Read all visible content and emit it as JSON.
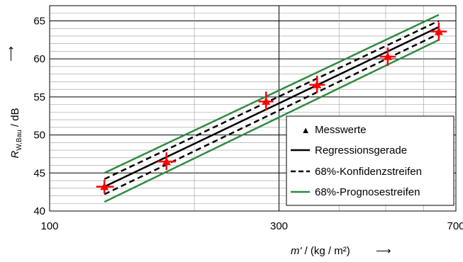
{
  "chart_data": {
    "type": "scatter",
    "x_scale": "log",
    "x_range": [
      100,
      700
    ],
    "y_range": [
      40,
      67
    ],
    "x_ticks": [
      100,
      300,
      700
    ],
    "x_tick_labels": [
      "100",
      "300",
      "700"
    ],
    "y_ticks": [
      40,
      45,
      50,
      55,
      60,
      65
    ],
    "y_tick_labels": [
      "40",
      "45",
      "50",
      "55",
      "60",
      "65"
    ],
    "grid": true,
    "ylabel_main": "R",
    "ylabel_sub": "W,Bau",
    "ylabel_rest": " / dB",
    "ylabel_arrow": "⟶",
    "xlabel_main": "m'",
    "xlabel_rest": " / (kg / m²)",
    "xlabel_arrow": "⟶",
    "legend_position": "bottom-right",
    "legend": [
      {
        "label": "Messwerte",
        "style": "marker",
        "color": "#ff0000"
      },
      {
        "label": "Regressionsgerade",
        "style": "solid",
        "color": "#000000"
      },
      {
        "label": "68%-Konfidenzstreifen",
        "style": "dashed",
        "color": "#000000"
      },
      {
        "label": "68%-Prognosestreifen",
        "style": "solid",
        "color": "#2e8b3e"
      }
    ],
    "series": [
      {
        "name": "Messwerte",
        "color": "#ff0000",
        "points": [
          {
            "x": 130,
            "y": 43.2,
            "x_err": [
              125,
              136
            ],
            "y_err": [
              42.3,
              44.1
            ]
          },
          {
            "x": 175,
            "y": 46.5,
            "x_err": [
              168,
              183
            ],
            "y_err": [
              45.4,
              47.7
            ]
          },
          {
            "x": 282,
            "y": 54.4,
            "x_err": [
              272,
              292
            ],
            "y_err": [
              53.2,
              55.7
            ]
          },
          {
            "x": 360,
            "y": 56.6,
            "x_err": [
              347,
              374
            ],
            "y_err": [
              55.5,
              57.8
            ]
          },
          {
            "x": 505,
            "y": 60.3,
            "x_err": [
              486,
              525
            ],
            "y_err": [
              59.1,
              61.5
            ]
          },
          {
            "x": 645,
            "y": 63.6,
            "x_err": [
              620,
              670
            ],
            "y_err": [
              62.4,
              64.8
            ]
          }
        ]
      },
      {
        "name": "Regressionsgerade",
        "color": "#000000",
        "line": [
          {
            "x": 130,
            "y": 43.2
          },
          {
            "x": 645,
            "y": 64.2
          }
        ]
      },
      {
        "name": "68%-Konfidenzstreifen",
        "color": "#000000",
        "upper": [
          {
            "x": 130,
            "y": 44.2
          },
          {
            "x": 645,
            "y": 65.0
          }
        ],
        "lower": [
          {
            "x": 130,
            "y": 42.2
          },
          {
            "x": 645,
            "y": 63.3
          }
        ]
      },
      {
        "name": "68%-Prognosestreifen",
        "color": "#2e8b3e",
        "upper": [
          {
            "x": 130,
            "y": 45.0
          },
          {
            "x": 645,
            "y": 65.8
          }
        ],
        "lower": [
          {
            "x": 130,
            "y": 41.2
          },
          {
            "x": 645,
            "y": 62.5
          }
        ]
      }
    ]
  }
}
